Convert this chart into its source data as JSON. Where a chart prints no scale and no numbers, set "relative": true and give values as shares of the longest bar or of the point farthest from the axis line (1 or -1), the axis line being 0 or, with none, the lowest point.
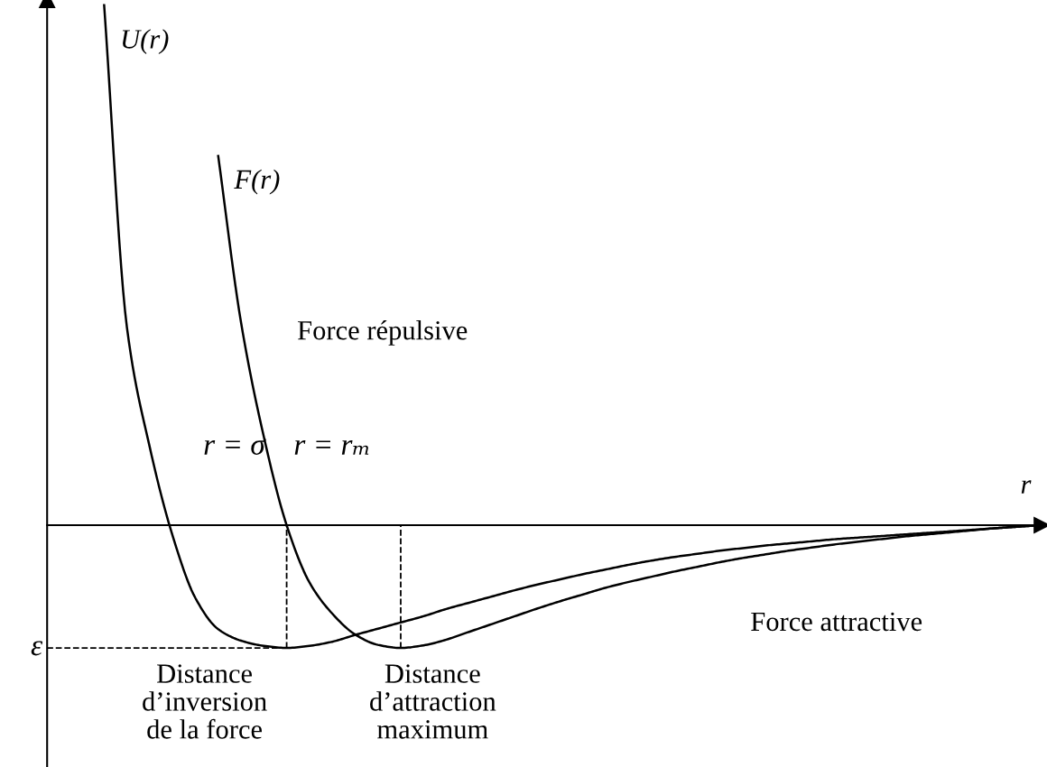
{
  "chart_data": {
    "type": "line",
    "relative": true,
    "xlabel": "r",
    "categories": [
      null,
      null,
      null,
      null,
      null,
      null,
      null,
      null,
      null,
      null,
      null,
      null,
      null,
      null,
      null,
      null,
      null,
      null,
      null,
      null,
      null,
      null,
      null,
      null,
      null,
      null,
      null,
      null,
      null,
      null,
      null,
      null,
      null,
      null,
      null,
      null,
      null,
      null,
      null,
      null,
      null,
      null
    ],
    "series": [
      {
        "name": "U(r)",
        "color": "#000000",
        "values": [
          1.0,
          0.38,
          0.15,
          -0.02,
          -0.14,
          -0.2,
          -0.222,
          -0.232,
          -0.236,
          -0.232,
          -0.224,
          -0.211,
          -0.199,
          -0.187,
          -0.175,
          -0.161,
          -0.149,
          -0.137,
          -0.125,
          -0.114,
          -0.104,
          -0.094,
          -0.085,
          -0.076,
          -0.068,
          -0.061,
          -0.055,
          -0.049,
          -0.044,
          -0.039,
          -0.035,
          -0.031,
          -0.027,
          -0.024,
          -0.021,
          -0.018,
          -0.015,
          -0.012,
          -0.009,
          -0.006,
          -0.003,
          0.0
        ]
      },
      {
        "name": "F(r)",
        "color": "#000000",
        "values": [
          null,
          null,
          null,
          null,
          null,
          0.71,
          0.39,
          0.17,
          0.0,
          -0.11,
          -0.17,
          -0.21,
          -0.23,
          -0.236,
          -0.231,
          -0.22,
          -0.205,
          -0.19,
          -0.175,
          -0.16,
          -0.146,
          -0.133,
          -0.12,
          -0.109,
          -0.099,
          -0.089,
          -0.08,
          -0.071,
          -0.063,
          -0.056,
          -0.049,
          -0.043,
          -0.037,
          -0.032,
          -0.027,
          -0.022,
          -0.018,
          -0.014,
          -0.01,
          -0.006,
          -0.003,
          0.0
        ]
      }
    ],
    "ref_lines": [
      {
        "axis": "y",
        "value": -0.236,
        "label": "ε",
        "line_style": "dashed"
      }
    ],
    "annotations": [
      "r = σ",
      "r = rₘ",
      "Force répulsive",
      "Force attractive",
      "Distance\nd’inversion\nde la force",
      "Distance\nd’attraction\nmaximum"
    ],
    "line_style": "solid",
    "marker": "none"
  }
}
